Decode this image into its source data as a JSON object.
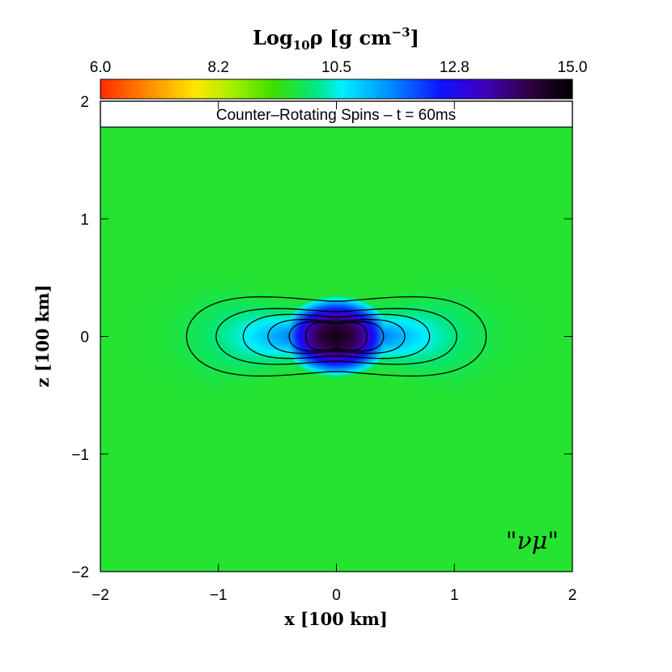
{
  "chart_data": {
    "type": "heatmap",
    "title": "Counter–Rotating Spins – t = 60ms",
    "annotation": "\"νμ\"",
    "xlabel": "x [100 km]",
    "ylabel": "z [100 km]",
    "xlim": [
      -2,
      2
    ],
    "ylim": [
      -2,
      2
    ],
    "x_ticks": [
      {
        "value": -2,
        "label": "−2"
      },
      {
        "value": -1,
        "label": "−1"
      },
      {
        "value": 0,
        "label": "0"
      },
      {
        "value": 1,
        "label": "1"
      },
      {
        "value": 2,
        "label": "2"
      }
    ],
    "y_ticks": [
      {
        "value": -2,
        "label": "−2"
      },
      {
        "value": -1,
        "label": "−1"
      },
      {
        "value": 0,
        "label": "0"
      },
      {
        "value": 1,
        "label": "1"
      },
      {
        "value": 2,
        "label": "2"
      }
    ],
    "colorbar": {
      "label_prefix": "Log",
      "label_sub": "10",
      "label_rho": "ρ [g cm",
      "label_exp": "−3",
      "label_close": "]",
      "range": [
        6.0,
        15.0
      ],
      "ticks": [
        {
          "value": 6.0,
          "label": "6.0"
        },
        {
          "value": 8.25,
          "label": "8.2"
        },
        {
          "value": 10.5,
          "label": "10.5"
        },
        {
          "value": 12.75,
          "label": "12.8"
        },
        {
          "value": 15.0,
          "label": "15.0"
        }
      ],
      "stops": [
        {
          "value": 6.0,
          "color": "#ff2a00"
        },
        {
          "value": 6.9,
          "color": "#ff8a00"
        },
        {
          "value": 7.8,
          "color": "#ffe600"
        },
        {
          "value": 8.5,
          "color": "#a8f000"
        },
        {
          "value": 9.3,
          "color": "#3ce000"
        },
        {
          "value": 10.1,
          "color": "#00e880"
        },
        {
          "value": 10.6,
          "color": "#00f0ff"
        },
        {
          "value": 11.5,
          "color": "#0090ff"
        },
        {
          "value": 12.5,
          "color": "#1010ff"
        },
        {
          "value": 13.3,
          "color": "#4000c0"
        },
        {
          "value": 14.2,
          "color": "#300040"
        },
        {
          "value": 15.0,
          "color": "#000000"
        }
      ]
    },
    "field_model": {
      "core_center": [
        0,
        0
      ],
      "core_peak_log_rho": 14.6,
      "polar_axis_log_rho": 7.2,
      "torus_log_rho": 9.0,
      "outer_log_rho": 8.2
    },
    "contour_levels": [
      {
        "log_rho": 10.0,
        "half_width": 1.27,
        "half_height": 0.54
      },
      {
        "log_rho": 10.8,
        "half_width": 1.02,
        "half_height": 0.38
      },
      {
        "log_rho": 11.6,
        "half_width": 0.79,
        "half_height": 0.3
      },
      {
        "log_rho": 12.4,
        "half_width": 0.58,
        "half_height": 0.23
      },
      {
        "log_rho": 13.2,
        "half_width": 0.4,
        "half_height": 0.2
      },
      {
        "log_rho": 14.0,
        "half_width": 0.26,
        "half_height": 0.19
      }
    ]
  }
}
